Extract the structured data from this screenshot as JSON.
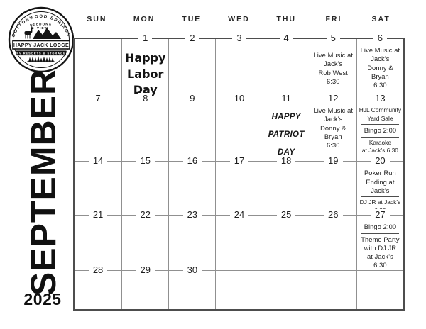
{
  "colors": {
    "ink": "#1d1d1d",
    "grid_line": "#909090",
    "grid_border": "#4d4d4d"
  },
  "logo": {
    "arc_text": "COTTONWOOD SPRINGS",
    "inner_line1": "SEDONA",
    "inner_line2": "VIEW",
    "name": "HAPPY JACK LODGE",
    "tagline": "RV RESORTS & STORAGE"
  },
  "sidebar": {
    "month": "SEPTEMBER",
    "year": "2025"
  },
  "calendar": {
    "day_headers": [
      "SUN",
      "MON",
      "TUE",
      "WED",
      "THU",
      "FRI",
      "SAT"
    ],
    "cells": [
      {
        "date": ""
      },
      {
        "date": "1",
        "blocks": [
          {
            "style": "script",
            "lines": [
              "Happy",
              "Labor",
              "Day"
            ]
          }
        ]
      },
      {
        "date": "2"
      },
      {
        "date": "3"
      },
      {
        "date": "4"
      },
      {
        "date": "5",
        "blocks": [
          {
            "style": "plain",
            "gap": 9,
            "lines": [
              "Live Music at",
              "Jack’s",
              "Rob West",
              "6:30"
            ]
          }
        ]
      },
      {
        "date": "6",
        "blocks": [
          {
            "style": "plain",
            "lines": [
              "Live Music at",
              "Jack’s",
              "Donny &",
              "Bryan",
              "6:30"
            ]
          }
        ]
      },
      {
        "date": "7"
      },
      {
        "date": "8"
      },
      {
        "date": "9"
      },
      {
        "date": "10"
      },
      {
        "date": "11",
        "blocks": [
          {
            "style": "patriot",
            "lines": [
              "HAPPY",
              "PATRIOT",
              "DAY"
            ]
          }
        ]
      },
      {
        "date": "12",
        "blocks": [
          {
            "style": "plain",
            "lines": [
              "Live Music at",
              "Jack’s",
              "Donny &",
              "Bryan",
              "6:30"
            ]
          }
        ]
      },
      {
        "date": "13",
        "blocks": [
          {
            "style": "small",
            "lines": [
              "HJL Community",
              "Yard Sale"
            ],
            "divider_after": true
          },
          {
            "style": "plain",
            "lines": [
              "Bingo 2:00"
            ],
            "divider_after": true
          },
          {
            "style": "small",
            "lines": [
              "Karaoke",
              "at Jack’s 6:30"
            ]
          }
        ]
      },
      {
        "date": "14"
      },
      {
        "date": "15"
      },
      {
        "date": "16"
      },
      {
        "date": "17"
      },
      {
        "date": "18"
      },
      {
        "date": "19"
      },
      {
        "date": "20",
        "blocks": [
          {
            "style": "plain",
            "lines": [
              "Poker Run",
              "Ending at",
              "Jack’s"
            ],
            "divider_after": true
          },
          {
            "style": "small",
            "lines": [
              "DJ JR at Jack’s",
              "6:30"
            ]
          }
        ]
      },
      {
        "date": "21"
      },
      {
        "date": "22"
      },
      {
        "date": "23"
      },
      {
        "date": "24"
      },
      {
        "date": "25"
      },
      {
        "date": "26"
      },
      {
        "date": "27",
        "blocks": [
          {
            "style": "plain",
            "lines": [
              "Bingo 2:00"
            ],
            "divider_after": true
          },
          {
            "style": "plain",
            "lines": [
              "Theme Party",
              "with DJ JR",
              "at Jack’s",
              "6:30"
            ]
          }
        ]
      },
      {
        "date": "28"
      },
      {
        "date": "29"
      },
      {
        "date": "30"
      },
      {
        "date": ""
      },
      {
        "date": ""
      },
      {
        "date": ""
      },
      {
        "date": ""
      }
    ]
  }
}
